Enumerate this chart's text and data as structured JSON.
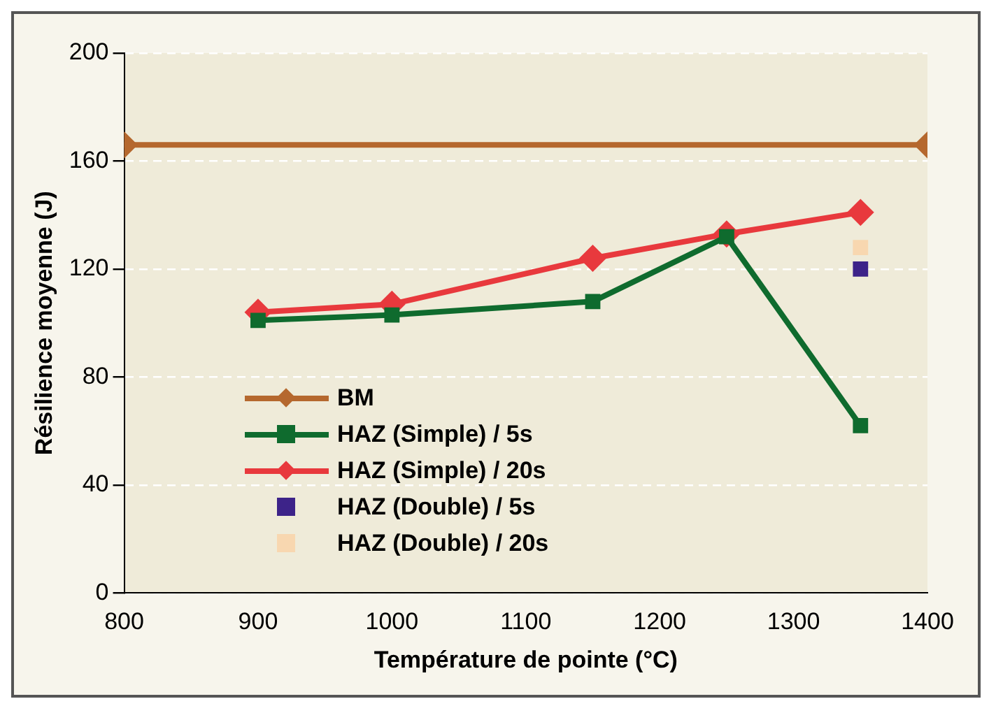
{
  "chart_data": {
    "type": "line",
    "xlabel": "Température de pointe (°C)",
    "ylabel": "Résilience moyenne (J)",
    "xlim": [
      800,
      1400
    ],
    "xticks": [
      800,
      900,
      1000,
      1100,
      1200,
      1300,
      1400
    ],
    "ylim": [
      0,
      200
    ],
    "yticks": [
      0,
      40,
      80,
      120,
      160,
      200
    ],
    "grid": "y",
    "legend": "bottom left",
    "series": [
      {
        "name": "BM",
        "color": "#b5682e",
        "x": [
          800,
          1400
        ],
        "values": [
          166,
          166
        ],
        "marker": "diamond"
      },
      {
        "name": "HAZ (Simple) / 5s",
        "color": "#0f6b2e",
        "x": [
          900,
          1000,
          1150,
          1250,
          1350
        ],
        "values": [
          101,
          103,
          108,
          132,
          62
        ],
        "marker": "square"
      },
      {
        "name": "HAZ (Simple) / 20s",
        "color": "#e8393d",
        "x": [
          900,
          1000,
          1150,
          1250,
          1350
        ],
        "values": [
          104,
          107,
          124,
          133,
          141
        ],
        "marker": "diamond"
      },
      {
        "name": "HAZ (Double) / 5s",
        "type": "scatter",
        "color": "#3d2389",
        "x": [
          1350
        ],
        "values": [
          120
        ],
        "marker": "square"
      },
      {
        "name": "HAZ (Double) / 20s",
        "type": "scatter",
        "color": "#f8d7b0",
        "x": [
          1350
        ],
        "values": [
          128
        ],
        "marker": "square"
      }
    ]
  }
}
